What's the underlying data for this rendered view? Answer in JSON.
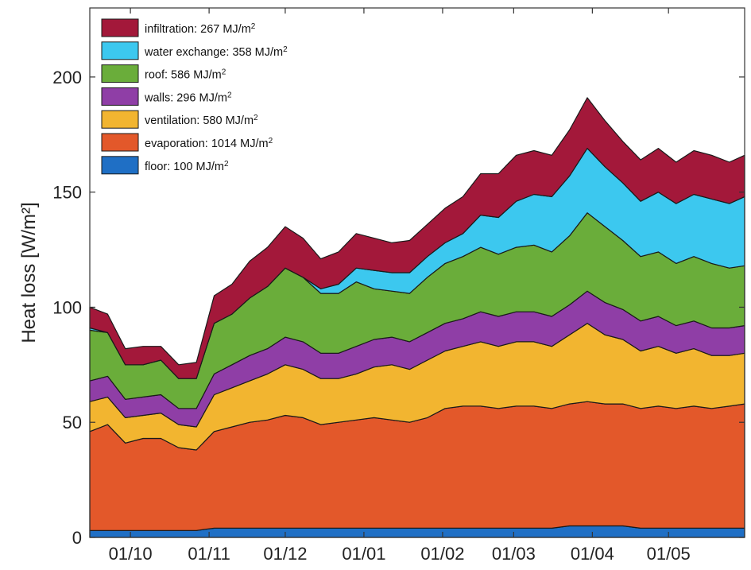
{
  "chart_data": {
    "type": "area",
    "stacked": true,
    "title": "",
    "xlabel": "",
    "ylabel": "Heat loss [W/m²]",
    "ylim": [
      0,
      230
    ],
    "yticks": [
      0,
      50,
      100,
      150,
      200
    ],
    "xlim": [
      "2020-09-15",
      "2021-05-31"
    ],
    "xticks": [
      {
        "date": "2020-10-01",
        "label": "01/10"
      },
      {
        "date": "2020-11-01",
        "label": "01/11"
      },
      {
        "date": "2020-12-01",
        "label": "01/12"
      },
      {
        "date": "2021-01-01",
        "label": "01/01"
      },
      {
        "date": "2021-02-01",
        "label": "01/02"
      },
      {
        "date": "2021-03-01",
        "label": "01/03"
      },
      {
        "date": "2021-04-01",
        "label": "01/04"
      },
      {
        "date": "2021-05-01",
        "label": "01/05"
      }
    ],
    "legend_position": "top-left",
    "grid": false,
    "x": [
      "2020-09-15",
      "2020-09-22",
      "2020-09-29",
      "2020-10-06",
      "2020-10-13",
      "2020-10-20",
      "2020-10-27",
      "2020-11-03",
      "2020-11-10",
      "2020-11-17",
      "2020-11-24",
      "2020-12-01",
      "2020-12-08",
      "2020-12-15",
      "2020-12-22",
      "2020-12-29",
      "2021-01-05",
      "2021-01-12",
      "2021-01-19",
      "2021-01-26",
      "2021-02-02",
      "2021-02-09",
      "2021-02-16",
      "2021-02-23",
      "2021-03-02",
      "2021-03-09",
      "2021-03-16",
      "2021-03-23",
      "2021-03-30",
      "2021-04-06",
      "2021-04-13",
      "2021-04-20",
      "2021-04-27",
      "2021-05-04",
      "2021-05-11",
      "2021-05-18",
      "2021-05-25",
      "2021-05-31"
    ],
    "series": [
      {
        "name": "floor",
        "energy_label": "100 MJ/m",
        "color": "#1f6fc5",
        "values": [
          3,
          3,
          3,
          3,
          3,
          3,
          3,
          4,
          4,
          4,
          4,
          4,
          4,
          4,
          4,
          4,
          4,
          4,
          4,
          4,
          4,
          4,
          4,
          4,
          4,
          4,
          4,
          5,
          5,
          5,
          5,
          4,
          4,
          4,
          4,
          4,
          4,
          4
        ]
      },
      {
        "name": "evaporation",
        "energy_label": "1014 MJ/m",
        "color": "#e3582a",
        "values": [
          43,
          46,
          38,
          40,
          40,
          36,
          35,
          42,
          44,
          46,
          47,
          49,
          48,
          45,
          46,
          47,
          48,
          47,
          46,
          48,
          52,
          53,
          53,
          52,
          53,
          53,
          52,
          53,
          54,
          53,
          53,
          52,
          53,
          52,
          53,
          52,
          53,
          54
        ]
      },
      {
        "name": "ventilation",
        "energy_label": "580 MJ/m",
        "color": "#f2b530",
        "values": [
          13,
          12,
          11,
          10,
          11,
          10,
          10,
          16,
          17,
          18,
          20,
          22,
          21,
          20,
          19,
          20,
          22,
          24,
          23,
          25,
          25,
          26,
          28,
          27,
          28,
          28,
          27,
          30,
          34,
          30,
          28,
          25,
          26,
          24,
          25,
          23,
          22,
          22
        ]
      },
      {
        "name": "walls",
        "energy_label": "296 MJ/m",
        "color": "#8f3ea6",
        "values": [
          9,
          9,
          8,
          8,
          8,
          7,
          8,
          9,
          10,
          11,
          11,
          12,
          12,
          11,
          11,
          12,
          12,
          12,
          12,
          12,
          12,
          12,
          13,
          13,
          13,
          13,
          13,
          13,
          14,
          14,
          13,
          13,
          13,
          12,
          12,
          12,
          12,
          12
        ]
      },
      {
        "name": "roof",
        "energy_label": "586 MJ/m",
        "color": "#6aad3a",
        "values": [
          22,
          19,
          15,
          14,
          15,
          13,
          13,
          22,
          22,
          25,
          27,
          30,
          28,
          26,
          26,
          28,
          22,
          20,
          21,
          24,
          26,
          27,
          28,
          27,
          28,
          29,
          28,
          30,
          34,
          33,
          30,
          28,
          28,
          27,
          28,
          28,
          26,
          26
        ]
      },
      {
        "name": "water exchange",
        "energy_label": "358 MJ/m",
        "color": "#3cc8ef",
        "values": [
          1,
          0,
          0,
          0,
          0,
          0,
          0,
          0,
          0,
          0,
          0,
          0,
          0,
          2,
          4,
          6,
          8,
          8,
          9,
          9,
          9,
          10,
          14,
          16,
          20,
          22,
          24,
          26,
          28,
          26,
          25,
          24,
          26,
          26,
          27,
          28,
          28,
          30
        ]
      },
      {
        "name": "infiltration",
        "energy_label": "267 MJ/m",
        "color": "#a3183a",
        "values": [
          9,
          8,
          7,
          8,
          6,
          6,
          7,
          12,
          13,
          16,
          17,
          18,
          17,
          13,
          14,
          15,
          14,
          13,
          14,
          14,
          15,
          16,
          18,
          19,
          20,
          19,
          18,
          20,
          22,
          20,
          18,
          18,
          19,
          18,
          19,
          19,
          18,
          18
        ]
      }
    ]
  }
}
